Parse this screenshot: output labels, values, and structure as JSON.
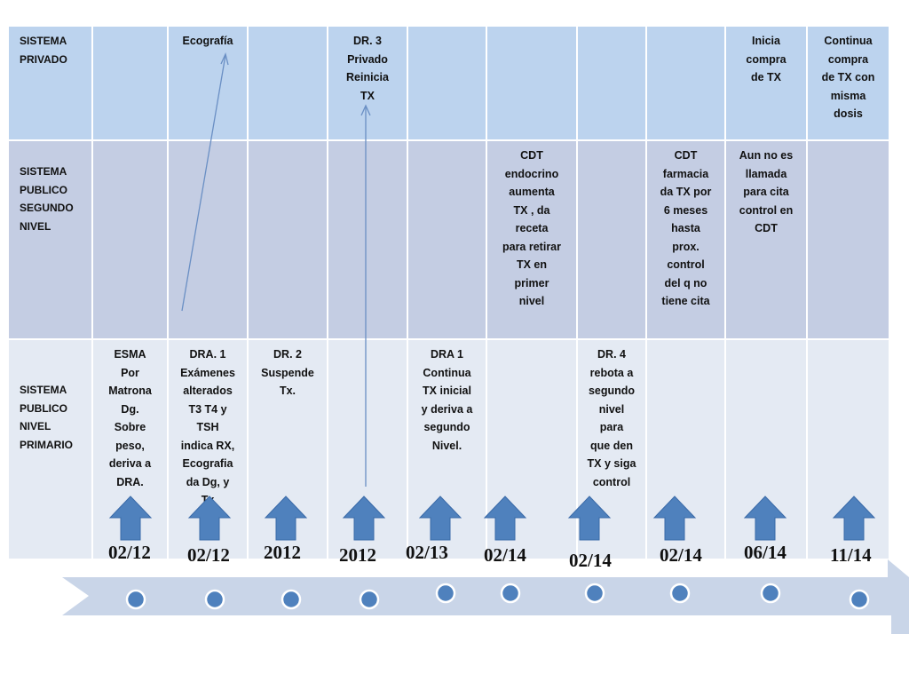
{
  "columns": [
    "02/12",
    "02/12",
    "2012",
    "2012",
    "02/13",
    "02/14",
    "02/14",
    "02/14",
    "06/14",
    "11/14"
  ],
  "rows": [
    {
      "header": "SISTEMA\nPRIVADO",
      "cells": [
        "",
        "Ecografía",
        "",
        "DR. 3\nPrivado\nReinicia\nTX",
        "",
        "",
        "",
        "",
        "Inicia\ncompra\nde TX",
        "Continua\ncompra\nde TX con\nmisma\ndosis"
      ]
    },
    {
      "header": "SISTEMA\nPUBLICO\nSEGUNDO\nNIVEL",
      "cells": [
        "",
        "",
        "",
        "",
        "",
        "CDT\nendocrino\naumenta\nTX , da\nreceta\npara retirar\nTX en\nprimer\nnivel",
        "",
        "CDT\nfarmacia\nda TX por\n6 meses\nhasta\nprox.\ncontrol\ndel q no\ntiene cita",
        "Aun no es\nllamada\npara  cita\ncontrol en\nCDT",
        ""
      ]
    },
    {
      "header": "SISTEMA\nPUBLICO\nNIVEL\nPRIMARIO",
      "cells": [
        "ESMA\nPor\nMatrona\nDg.\nSobre\npeso,\nderiva a\nDRA.",
        "DRA. 1\nExámenes\nalterados\nT3 T4 y\nTSH\nindica RX,\nEcografia\nda Dg, y\nTx",
        "DR. 2\nSuspende\nTx.",
        "",
        "DRA 1\nContinua\nTX inicial\ny deriva a\nsegundo\nNivel.",
        "",
        "DR. 4\nrebota a\nsegundo\nnivel\npara\nque den\nTX y siga\ncontrol",
        "",
        "",
        ""
      ]
    }
  ],
  "colors": {
    "row_privado": "#bcd3ee",
    "row_segundo": "#c4cde3",
    "row_primario": "#e4eaf3",
    "up_arrow": "#4f81bd",
    "timeline_band": "#c9d5e8",
    "timeline_dot": "#4f81bd"
  },
  "icons": {
    "column_marker": "up-arrow-icon",
    "timeline_point": "dot-icon",
    "timeline": "right-arrow-band",
    "connector": "thin-arrow-connector"
  }
}
